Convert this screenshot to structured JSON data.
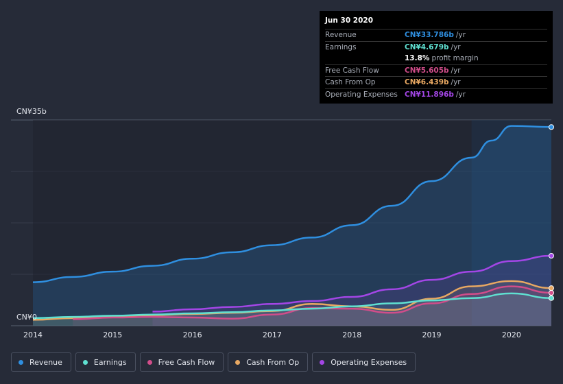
{
  "tooltip": {
    "date": "Jun 30 2020",
    "rows": [
      {
        "label": "Revenue",
        "value": "CN¥33.786b",
        "unit": "/yr",
        "color": "#2f8fe0"
      },
      {
        "label": "Earnings",
        "value": "CN¥4.679b",
        "unit": "/yr",
        "color": "#5fe0d1"
      },
      {
        "label": "",
        "value": "13.8%",
        "unit": "profit margin",
        "color": "#ffffff"
      },
      {
        "label": "Free Cash Flow",
        "value": "CN¥5.605b",
        "unit": "/yr",
        "color": "#d14d8a"
      },
      {
        "label": "Cash From Op",
        "value": "CN¥6.439b",
        "unit": "/yr",
        "color": "#e8a862"
      },
      {
        "label": "Operating Expenses",
        "value": "CN¥11.896b",
        "unit": "/yr",
        "color": "#a346e6"
      }
    ]
  },
  "legend": [
    {
      "label": "Revenue",
      "color": "#2f8fe0"
    },
    {
      "label": "Earnings",
      "color": "#5fe0d1"
    },
    {
      "label": "Free Cash Flow",
      "color": "#d14d8a"
    },
    {
      "label": "Cash From Op",
      "color": "#e8a862"
    },
    {
      "label": "Operating Expenses",
      "color": "#a346e6"
    }
  ],
  "chart_data": {
    "type": "line",
    "title": "",
    "ylabel_top": "CN¥35b",
    "ylabel_bottom": "CN¥0",
    "ylim": [
      0,
      35
    ],
    "xlim": [
      2014,
      2020.5
    ],
    "x_ticks": [
      "2014",
      "2015",
      "2016",
      "2017",
      "2018",
      "2019",
      "2020"
    ],
    "series": [
      {
        "name": "Revenue",
        "color": "#2f8fe0",
        "x": [
          2014,
          2014.5,
          2015,
          2015.5,
          2016,
          2016.5,
          2017,
          2017.5,
          2018,
          2018.5,
          2019,
          2019.5,
          2019.75,
          2020,
          2020.5
        ],
        "y": [
          7.4,
          8.3,
          9.2,
          10.2,
          11.4,
          12.5,
          13.7,
          15.0,
          17.1,
          20.4,
          24.6,
          28.6,
          31.5,
          34.0,
          33.8
        ]
      },
      {
        "name": "Operating Expenses",
        "color": "#a346e6",
        "x": [
          2015.5,
          2016,
          2016.5,
          2017,
          2017.5,
          2018,
          2018.5,
          2019,
          2019.5,
          2020,
          2020.5
        ],
        "y": [
          2.4,
          2.8,
          3.2,
          3.7,
          4.2,
          4.9,
          6.2,
          7.8,
          9.2,
          11.0,
          11.9
        ]
      },
      {
        "name": "Cash From Op",
        "color": "#e8a862",
        "x": [
          2014,
          2014.5,
          2015,
          2015.5,
          2016,
          2016.5,
          2017,
          2017.5,
          2018,
          2018.5,
          2019,
          2019.5,
          2020,
          2020.5
        ],
        "y": [
          1.0,
          1.3,
          1.6,
          1.8,
          2.0,
          2.2,
          2.5,
          3.7,
          3.3,
          2.7,
          4.6,
          6.7,
          7.6,
          6.4
        ]
      },
      {
        "name": "Free Cash Flow",
        "color": "#d14d8a",
        "x": [
          2014.5,
          2015,
          2015.5,
          2016,
          2016.5,
          2017,
          2017.5,
          2018,
          2018.5,
          2019,
          2019.5,
          2020,
          2020.5
        ],
        "y": [
          1.1,
          1.4,
          1.5,
          1.4,
          1.2,
          1.9,
          3.0,
          2.9,
          2.2,
          3.8,
          5.4,
          6.7,
          5.6
        ]
      },
      {
        "name": "Earnings",
        "color": "#5fe0d1",
        "x": [
          2014,
          2014.5,
          2015,
          2015.5,
          2016,
          2016.5,
          2017,
          2017.5,
          2018,
          2018.5,
          2019,
          2019.5,
          2020,
          2020.5
        ],
        "y": [
          1.3,
          1.5,
          1.7,
          1.9,
          2.1,
          2.3,
          2.6,
          2.9,
          3.3,
          3.8,
          4.3,
          4.7,
          5.5,
          4.7
        ]
      }
    ]
  }
}
